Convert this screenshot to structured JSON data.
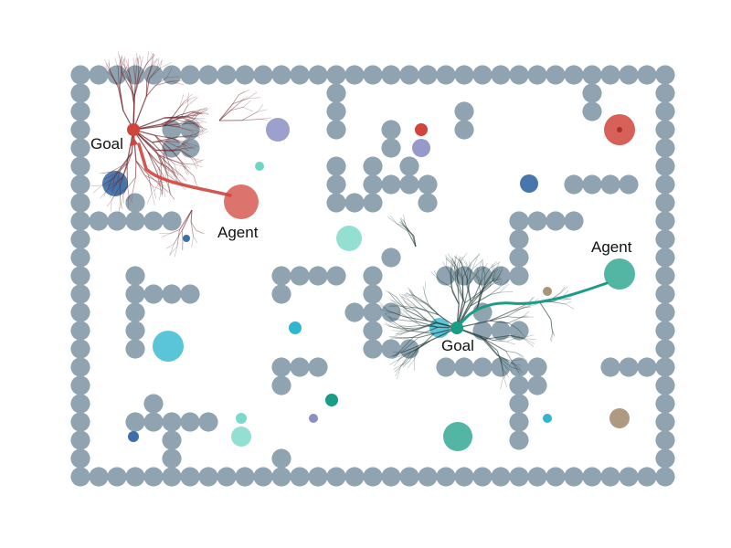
{
  "labels": {
    "red_goal": "Goal",
    "red_agent": "Agent",
    "teal_goal": "Goal",
    "teal_agent": "Agent"
  },
  "colors": {
    "wall": "#8fa4b0",
    "red": "#d0443c",
    "red_tree": "#6b1f25",
    "teal": "#1a9c86",
    "teal_tree": "#1f3a35",
    "blue": "#3d6fa8",
    "cyan": "#31b6d0",
    "mint": "#6fd6c4",
    "lavender": "#8a8fc4",
    "brown": "#9a8062"
  }
}
